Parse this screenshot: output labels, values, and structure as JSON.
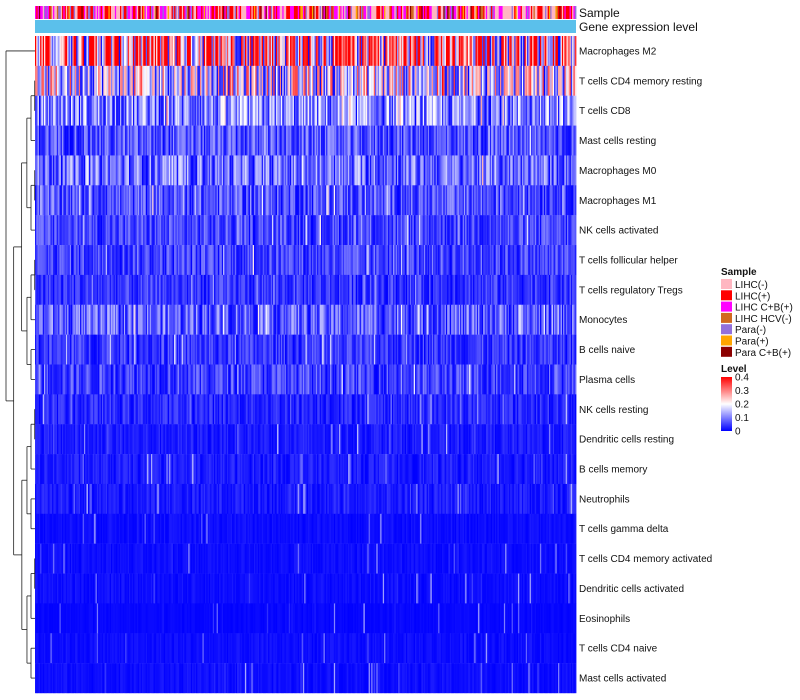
{
  "chart_data": {
    "type": "heatmap",
    "annotations": [
      {
        "name": "Sample",
        "kind": "categorical"
      },
      {
        "name": "Gene expression level",
        "kind": "continuous"
      }
    ],
    "rows": [
      {
        "label": "Macrophages M2",
        "mean": 0.28
      },
      {
        "label": "T cells CD4 memory resting",
        "mean": 0.17
      },
      {
        "label": "T cells CD8",
        "mean": 0.1
      },
      {
        "label": "Mast cells resting",
        "mean": 0.06
      },
      {
        "label": "Macrophages M0",
        "mean": 0.08
      },
      {
        "label": "Macrophages M1",
        "mean": 0.06
      },
      {
        "label": "NK cells activated",
        "mean": 0.05
      },
      {
        "label": "T cells follicular helper",
        "mean": 0.05
      },
      {
        "label": "T cells regulatory  Tregs",
        "mean": 0.04
      },
      {
        "label": "Monocytes",
        "mean": 0.07
      },
      {
        "label": "B cells naive",
        "mean": 0.04
      },
      {
        "label": "Plasma cells",
        "mean": 0.05
      },
      {
        "label": "NK cells resting",
        "mean": 0.03
      },
      {
        "label": "Dendritic cells resting",
        "mean": 0.02
      },
      {
        "label": "B cells memory",
        "mean": 0.02
      },
      {
        "label": "Neutrophils",
        "mean": 0.02
      },
      {
        "label": "T cells gamma delta",
        "mean": 0.01
      },
      {
        "label": "T cells CD4 memory activated",
        "mean": 0.01
      },
      {
        "label": "Dendritic cells activated",
        "mean": 0.01
      },
      {
        "label": "Eosinophils",
        "mean": 0.005
      },
      {
        "label": "T cells CD4 naive",
        "mean": 0.01
      },
      {
        "label": "Mast cells activated",
        "mean": 0.01
      }
    ],
    "column_count": 420,
    "legend": {
      "sample_title": "Sample",
      "samples": [
        {
          "label": "LIHC(-)",
          "color": "#FFB6C1"
        },
        {
          "label": "LIHC(+)",
          "color": "#FF0000"
        },
        {
          "label": "LIHC C+B(+)",
          "color": "#FF00FF"
        },
        {
          "label": "LIHC HCV(-)",
          "color": "#D2691E"
        },
        {
          "label": "Para(-)",
          "color": "#9370DB"
        },
        {
          "label": "Para(+)",
          "color": "#FFA500"
        },
        {
          "label": "Para C+B(+)",
          "color": "#8B0000"
        }
      ],
      "level_title": "Level",
      "level_ticks": [
        "0.4",
        "0.3",
        "0.2",
        "0.1",
        "0"
      ],
      "level_range": [
        0,
        0.4
      ]
    },
    "colors": {
      "low": "#0000FF",
      "mid": "#FFFFFF",
      "high": "#FF0000",
      "expression": "#5BC0EB"
    }
  }
}
